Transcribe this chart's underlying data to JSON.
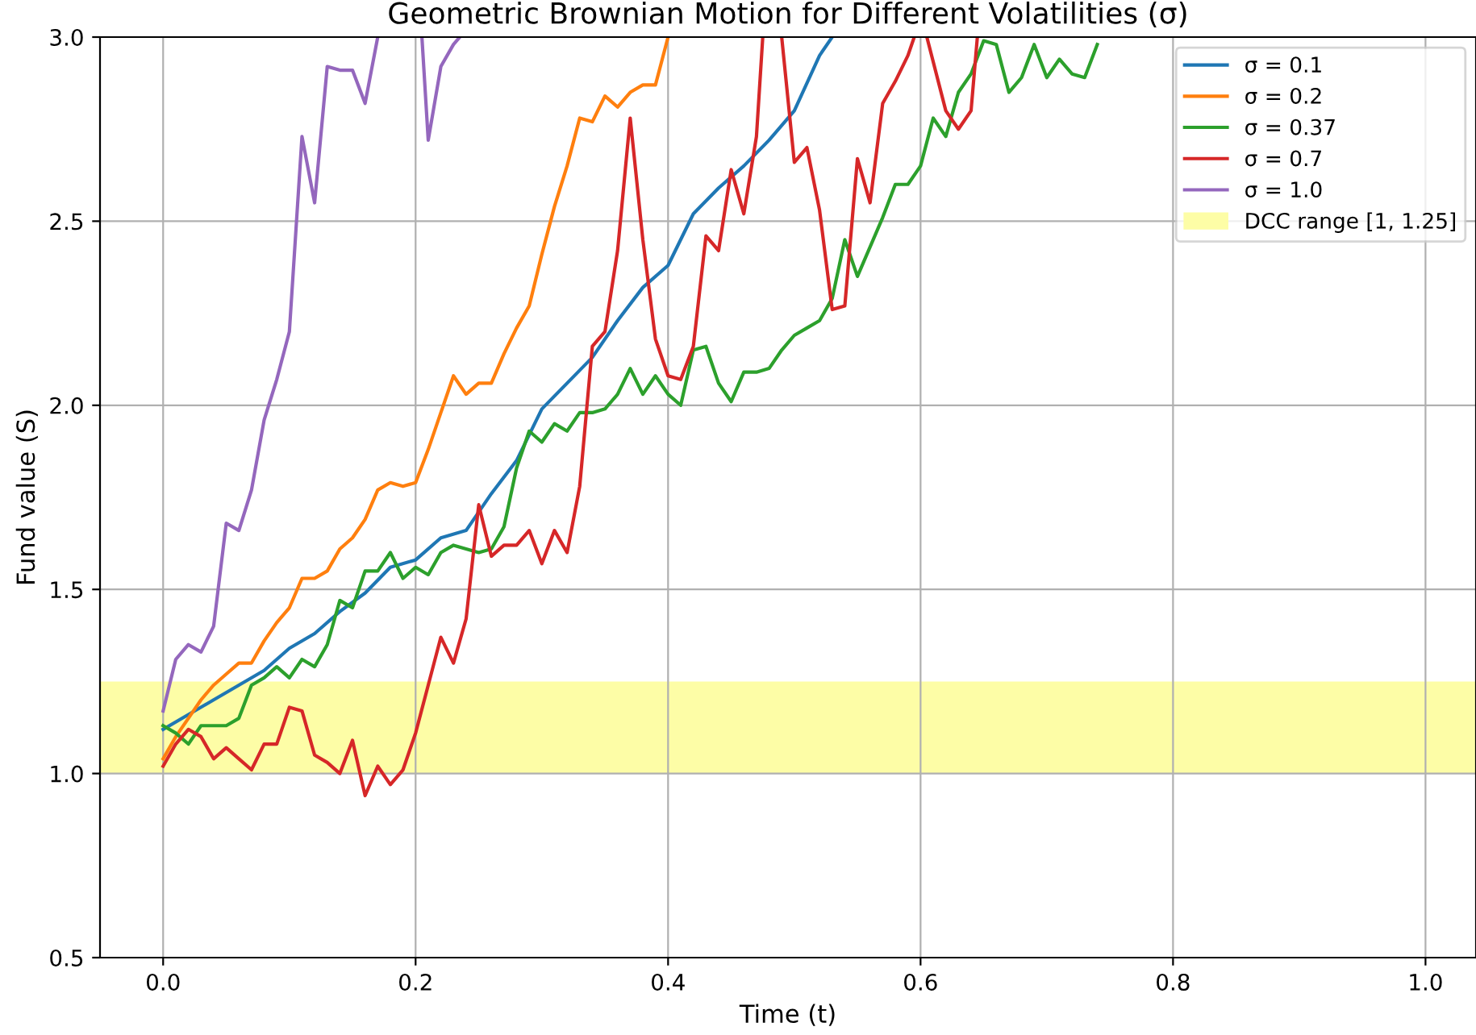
{
  "chart_data": {
    "type": "line",
    "title": "Geometric Brownian Motion for Different Volatilities (σ)",
    "xlabel": "Time (t)",
    "ylabel": "Fund value (S)",
    "xlim": [
      -0.05,
      1.04
    ],
    "ylim": [
      0.5,
      3.0
    ],
    "xticks": [
      {
        "value": 0,
        "label": "0.0"
      },
      0.2,
      0.4,
      0.6,
      0.8,
      {
        "value": 1,
        "label": "1.0"
      }
    ],
    "yticks": [
      0.5,
      {
        "value": 1,
        "label": "1.0"
      },
      1.5,
      {
        "value": 2,
        "label": "2.0"
      },
      2.5,
      {
        "value": 3,
        "label": "3.0"
      }
    ],
    "grid": true,
    "legend": "top right",
    "line_style": "solid",
    "marker": "none",
    "bands": [
      {
        "axis": "y",
        "from": 1,
        "to": 1.25,
        "label": "DCC range [1, 1.25]",
        "color": "#fdfda6"
      }
    ],
    "series": [
      {
        "name": "σ = 0.1",
        "color": "#1f77b4",
        "x": [
          0,
          0.02,
          0.04,
          0.06,
          0.08,
          0.1,
          0.12,
          0.14,
          0.16,
          0.18,
          0.2,
          0.22,
          0.24,
          0.26,
          0.28,
          0.3,
          0.32,
          0.34,
          0.36,
          0.38,
          0.4,
          0.42,
          0.44,
          0.46,
          0.48,
          0.5,
          0.52,
          0.53
        ],
        "values": [
          1.12,
          1.16,
          1.2,
          1.24,
          1.28,
          1.34,
          1.38,
          1.44,
          1.49,
          1.56,
          1.58,
          1.64,
          1.66,
          1.76,
          1.85,
          1.99,
          2.06,
          2.13,
          2.23,
          2.32,
          2.38,
          2.52,
          2.59,
          2.65,
          2.72,
          2.8,
          2.95,
          3.0
        ]
      },
      {
        "name": "σ = 0.2",
        "color": "#ff7f0e",
        "x": [
          0,
          0.01,
          0.02,
          0.03,
          0.04,
          0.05,
          0.06,
          0.07,
          0.08,
          0.09,
          0.1,
          0.11,
          0.12,
          0.13,
          0.14,
          0.15,
          0.16,
          0.17,
          0.18,
          0.19,
          0.2,
          0.21,
          0.22,
          0.23,
          0.24,
          0.25,
          0.26,
          0.27,
          0.28,
          0.29,
          0.3,
          0.31,
          0.32,
          0.33,
          0.34,
          0.35,
          0.36,
          0.37,
          0.38,
          0.39,
          0.4
        ],
        "values": [
          1.04,
          1.1,
          1.15,
          1.2,
          1.24,
          1.27,
          1.3,
          1.3,
          1.36,
          1.41,
          1.45,
          1.53,
          1.53,
          1.55,
          1.61,
          1.64,
          1.69,
          1.77,
          1.79,
          1.78,
          1.79,
          1.88,
          1.98,
          2.08,
          2.03,
          2.06,
          2.06,
          2.14,
          2.21,
          2.27,
          2.41,
          2.54,
          2.65,
          2.78,
          2.77,
          2.84,
          2.81,
          2.85,
          2.87,
          2.87,
          3.0
        ]
      },
      {
        "name": "σ = 0.37",
        "color": "#2ca02c",
        "x": [
          0,
          0.01,
          0.02,
          0.03,
          0.04,
          0.05,
          0.06,
          0.07,
          0.08,
          0.09,
          0.1,
          0.11,
          0.12,
          0.13,
          0.14,
          0.15,
          0.16,
          0.17,
          0.18,
          0.19,
          0.2,
          0.21,
          0.22,
          0.23,
          0.24,
          0.25,
          0.26,
          0.27,
          0.28,
          0.29,
          0.3,
          0.31,
          0.32,
          0.33,
          0.34,
          0.35,
          0.36,
          0.37,
          0.38,
          0.39,
          0.4,
          0.41,
          0.42,
          0.43,
          0.44,
          0.45,
          0.46,
          0.47,
          0.48,
          0.49,
          0.5,
          0.51,
          0.52,
          0.53,
          0.54,
          0.55,
          0.56,
          0.57,
          0.58,
          0.59,
          0.6,
          0.61,
          0.62,
          0.63,
          0.64,
          0.65,
          0.66,
          0.67,
          0.68,
          0.69,
          0.7,
          0.71,
          0.72,
          0.73,
          0.74
        ],
        "values": [
          1.13,
          1.11,
          1.08,
          1.13,
          1.13,
          1.13,
          1.15,
          1.24,
          1.26,
          1.29,
          1.26,
          1.31,
          1.29,
          1.35,
          1.47,
          1.45,
          1.55,
          1.55,
          1.6,
          1.53,
          1.56,
          1.54,
          1.6,
          1.62,
          1.61,
          1.6,
          1.61,
          1.67,
          1.83,
          1.93,
          1.9,
          1.95,
          1.93,
          1.98,
          1.98,
          1.99,
          2.03,
          2.1,
          2.03,
          2.08,
          2.03,
          2.0,
          2.15,
          2.16,
          2.06,
          2.01,
          2.09,
          2.09,
          2.1,
          2.15,
          2.19,
          2.21,
          2.23,
          2.29,
          2.45,
          2.35,
          2.43,
          2.51,
          2.6,
          2.6,
          2.65,
          2.78,
          2.73,
          2.85,
          2.9,
          2.99,
          2.98,
          2.85,
          2.89,
          2.98,
          2.89,
          2.94,
          2.9,
          2.89,
          2.98
        ]
      },
      {
        "name": "σ = 0.7",
        "color": "#d62728",
        "x": [
          0,
          0.01,
          0.02,
          0.03,
          0.04,
          0.05,
          0.06,
          0.07,
          0.08,
          0.09,
          0.1,
          0.11,
          0.12,
          0.13,
          0.14,
          0.15,
          0.16,
          0.17,
          0.18,
          0.19,
          0.2,
          0.21,
          0.22,
          0.23,
          0.24,
          0.25,
          0.26,
          0.27,
          0.28,
          0.29,
          0.3,
          0.31,
          0.32,
          0.33,
          0.34,
          0.35,
          0.36,
          0.37,
          0.38,
          0.39,
          0.4,
          0.41,
          0.42,
          0.43,
          0.44,
          0.45,
          0.46,
          0.47,
          0.475,
          0.48,
          0.49,
          0.5,
          0.51,
          0.52,
          0.53,
          0.54,
          0.55,
          0.56,
          0.57,
          0.58,
          0.59,
          0.595,
          0.6,
          0.605,
          0.62,
          0.63,
          0.64,
          0.645
        ],
        "values": [
          1.02,
          1.08,
          1.12,
          1.1,
          1.04,
          1.07,
          1.04,
          1.01,
          1.08,
          1.08,
          1.18,
          1.17,
          1.05,
          1.03,
          1.0,
          1.09,
          0.94,
          1.02,
          0.97,
          1.01,
          1.11,
          1.24,
          1.37,
          1.3,
          1.42,
          1.73,
          1.59,
          1.62,
          1.62,
          1.66,
          1.57,
          1.66,
          1.6,
          1.78,
          2.16,
          2.2,
          2.42,
          2.78,
          2.45,
          2.18,
          2.08,
          2.07,
          2.16,
          2.46,
          2.42,
          2.64,
          2.52,
          2.73,
          3.0,
          null,
          3.0,
          2.66,
          2.7,
          2.53,
          2.26,
          2.27,
          2.67,
          2.55,
          2.82,
          2.88,
          2.95,
          3.0,
          null,
          3.0,
          2.8,
          2.75,
          2.8,
          3.0
        ]
      },
      {
        "name": "σ = 1.0",
        "color": "#9467bd",
        "x": [
          0,
          0.01,
          0.02,
          0.03,
          0.04,
          0.05,
          0.06,
          0.07,
          0.08,
          0.09,
          0.1,
          0.11,
          0.12,
          0.13,
          0.14,
          0.15,
          0.16,
          0.17,
          0.19,
          0.205,
          0.21,
          0.22,
          0.23,
          0.235
        ],
        "values": [
          1.17,
          1.31,
          1.35,
          1.33,
          1.4,
          1.68,
          1.66,
          1.77,
          1.96,
          2.07,
          2.2,
          2.73,
          2.55,
          2.92,
          2.91,
          2.91,
          2.82,
          3.0,
          null,
          3.0,
          2.72,
          2.92,
          2.98,
          3.0
        ]
      }
    ]
  }
}
